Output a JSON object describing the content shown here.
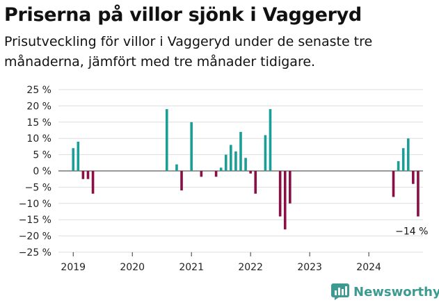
{
  "title": "Priserna på villor sjönk i Vaggeryd",
  "subtitle": "Prisutveckling för villor i Vaggeryd under de senaste tre månaderna, jämfört med tre månader tidigare.",
  "brand": {
    "name": "Newsworthy",
    "icon": "bar-chart-logo-icon",
    "color": "#3d9a91"
  },
  "colors": {
    "positive": "#1a9e96",
    "negative": "#8a0f45",
    "grid": "#dddddd",
    "axis": "#333333"
  },
  "chart_data": {
    "type": "bar",
    "title": "Priserna på villor sjönk i Vaggeryd",
    "ylim": [
      -25,
      25
    ],
    "yticks": [
      25,
      20,
      15,
      10,
      5,
      0,
      -5,
      -10,
      -15,
      -20,
      -25
    ],
    "ytick_labels": [
      "25 %",
      "20 %",
      "15 %",
      "10 %",
      "5 %",
      "0 %",
      "−5 %",
      "−10 %",
      "−15 %",
      "−20 %",
      "−25 %"
    ],
    "xlim": [
      "2018-10",
      "2024-12"
    ],
    "xticks": [
      "2019-01",
      "2020-01",
      "2021-01",
      "2022-01",
      "2023-01",
      "2024-01"
    ],
    "xtick_labels": [
      "2019",
      "2020",
      "2021",
      "2022",
      "2023",
      "2024"
    ],
    "grid": true,
    "annotations": [
      {
        "x": "2024-10",
        "y": -14,
        "text": "−14 %"
      }
    ],
    "points": [
      {
        "x": "2019-01",
        "y": 7
      },
      {
        "x": "2019-02",
        "y": 9
      },
      {
        "x": "2019-03",
        "y": -2.5
      },
      {
        "x": "2019-04",
        "y": -2.5
      },
      {
        "x": "2019-05",
        "y": -7
      },
      {
        "x": "2020-08",
        "y": 19
      },
      {
        "x": "2020-10",
        "y": 2
      },
      {
        "x": "2020-11",
        "y": -6
      },
      {
        "x": "2021-01",
        "y": 15
      },
      {
        "x": "2021-03",
        "y": -1.8
      },
      {
        "x": "2021-06",
        "y": -1.8
      },
      {
        "x": "2021-07",
        "y": 1
      },
      {
        "x": "2021-08",
        "y": 5
      },
      {
        "x": "2021-09",
        "y": 8
      },
      {
        "x": "2021-10",
        "y": 6
      },
      {
        "x": "2021-11",
        "y": 12
      },
      {
        "x": "2021-12",
        "y": 4
      },
      {
        "x": "2022-01",
        "y": -0.8
      },
      {
        "x": "2022-02",
        "y": -7
      },
      {
        "x": "2022-04",
        "y": 11
      },
      {
        "x": "2022-05",
        "y": 19
      },
      {
        "x": "2022-07",
        "y": -14
      },
      {
        "x": "2022-08",
        "y": -18
      },
      {
        "x": "2022-09",
        "y": -10
      },
      {
        "x": "2024-06",
        "y": -8
      },
      {
        "x": "2024-07",
        "y": 3
      },
      {
        "x": "2024-08",
        "y": 7
      },
      {
        "x": "2024-09",
        "y": 10
      },
      {
        "x": "2024-10",
        "y": -4
      },
      {
        "x": "2024-11",
        "y": -14
      }
    ]
  }
}
